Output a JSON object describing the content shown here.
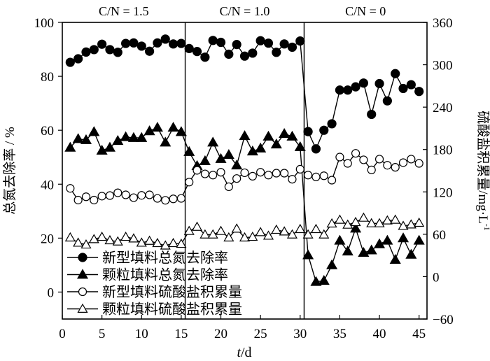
{
  "chart_data": {
    "type": "line",
    "xlabel_italic": "t",
    "xlabel_unit": "/d",
    "ylabel_left": "总氮去除率 / %",
    "ylabel_right": "硫酸盐积累量/mg·L",
    "ylabel_right_sup": "-1",
    "xlim": [
      0,
      46
    ],
    "ylim_left": [
      -10,
      100
    ],
    "ylim_right": [
      -60,
      360
    ],
    "x_ticks": [
      0,
      5,
      10,
      15,
      20,
      25,
      30,
      35,
      40,
      45
    ],
    "y_ticks_left": [
      0,
      20,
      40,
      60,
      80,
      100
    ],
    "y_ticks_right": [
      -60,
      0,
      60,
      120,
      180,
      240,
      300,
      360
    ],
    "phase_dividers": [
      15.5,
      30.5
    ],
    "phase_labels": [
      {
        "label": "C/N = 1.5",
        "center": 7.75
      },
      {
        "label": "C/N = 1.0",
        "center": 23
      },
      {
        "label": "C/N = 0",
        "center": 38.25
      }
    ],
    "legend_position": "bottom-left",
    "grid": false,
    "x": [
      1,
      2,
      3,
      4,
      5,
      6,
      7,
      8,
      9,
      10,
      11,
      12,
      13,
      14,
      15,
      16,
      17,
      18,
      19,
      20,
      21,
      22,
      23,
      24,
      25,
      26,
      27,
      28,
      29,
      30,
      31,
      32,
      33,
      34,
      35,
      36,
      37,
      38,
      39,
      40,
      41,
      42,
      43,
      44,
      45
    ],
    "series": [
      {
        "name": "新型填料总氮去除率",
        "axis": "left",
        "marker": "filled-circle",
        "values": [
          85.2,
          86.5,
          89.0,
          89.9,
          91.9,
          89.9,
          88.9,
          92.2,
          92.4,
          91.2,
          89.3,
          92.4,
          93.8,
          92.0,
          92.2,
          90.3,
          89.2,
          87.1,
          93.3,
          92.6,
          88.2,
          91.8,
          87.5,
          88.6,
          93.2,
          92.3,
          88.9,
          92.0,
          90.8,
          93.1,
          59.5,
          53.1,
          60.0,
          62.4,
          74.9,
          74.9,
          76.1,
          77.5,
          65.9,
          77.3,
          70.9,
          81.0,
          75.5,
          76.9,
          74.4
        ]
      },
      {
        "name": "颗粒填料总氮去除率",
        "axis": "left",
        "marker": "filled-triangle",
        "values": [
          53.6,
          56.8,
          56.4,
          59.4,
          52.5,
          53.6,
          56.1,
          57.5,
          57.2,
          57.2,
          59.7,
          61.0,
          55.5,
          61.0,
          59.4,
          52.0,
          46.8,
          48.6,
          55.5,
          49.4,
          50.9,
          47.0,
          57.9,
          52.2,
          53.3,
          57.7,
          54.8,
          58.7,
          57.7,
          53.8,
          13.7,
          3.8,
          4.2,
          10.0,
          19.1,
          15.1,
          23.6,
          14.6,
          15.5,
          17.8,
          19.1,
          12.0,
          20.0,
          13.9,
          19.1
        ]
      },
      {
        "name": "新型填料硫酸盐积累量",
        "axis": "right",
        "marker": "open-circle",
        "values": [
          125,
          108.4,
          113.1,
          108.4,
          114,
          114.8,
          118.7,
          115.8,
          111.8,
          115.1,
          115.8,
          110.8,
          108.1,
          110.1,
          110.8,
          133.9,
          150.5,
          145.5,
          143.8,
          147.8,
          127.3,
          138.9,
          147.1,
          142.2,
          147.8,
          143.8,
          146.5,
          146.5,
          137.9,
          152.1,
          143.8,
          141.2,
          142.8,
          136.6,
          169.3,
          160.4,
          174.6,
          165.4,
          151.1,
          166.4,
          157.7,
          154.8,
          161.4,
          166.4,
          160.4
        ]
      },
      {
        "name": "颗粒填料硫酸盐积累量",
        "axis": "right",
        "marker": "open-triangle",
        "values": [
          55.3,
          47.9,
          45.3,
          52.9,
          56.2,
          51.3,
          49.6,
          56.2,
          53.9,
          47.9,
          50.6,
          47.3,
          43.9,
          47.3,
          46.3,
          64.5,
          70.4,
          59.5,
          59.5,
          64.5,
          55.3,
          67.8,
          55.3,
          56.2,
          62.8,
          57.8,
          66.2,
          63.8,
          59.5,
          67.2,
          59.5,
          67.2,
          59.5,
          75.1,
          80.4,
          73.4,
          77.1,
          83.3,
          75.4,
          75.4,
          79.4,
          80.4,
          71.7,
          73.7,
          76.1
        ]
      }
    ]
  }
}
